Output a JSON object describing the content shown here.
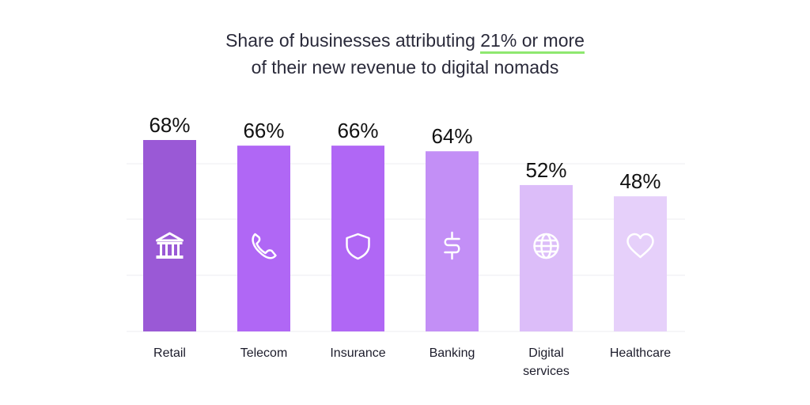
{
  "title": {
    "line1_prefix": "Share of businesses attributing ",
    "line1_highlight": "21% or more",
    "line2": "of their new revenue to digital nomads"
  },
  "colors": {
    "highlight_underline": "#8ee86f",
    "grid": "#ececf0"
  },
  "chart_data": {
    "type": "bar",
    "categories": [
      "Retail",
      "Telecom",
      "Insurance",
      "Banking",
      "Digital services",
      "Healthcare"
    ],
    "category_lines": [
      [
        "Retail"
      ],
      [
        "Telecom"
      ],
      [
        "Insurance"
      ],
      [
        "Banking"
      ],
      [
        "Digital",
        "services"
      ],
      [
        "Healthcare"
      ]
    ],
    "values": [
      68,
      66,
      66,
      64,
      52,
      48
    ],
    "value_labels": [
      "68%",
      "66%",
      "66%",
      "64%",
      "52%",
      "48%"
    ],
    "unit": "%",
    "bar_colors": [
      "#9a59d6",
      "#b067f5",
      "#b067f5",
      "#c38ff6",
      "#dcbdf9",
      "#e6d0fa"
    ],
    "icons": [
      "bank-icon",
      "phone-icon",
      "shield-icon",
      "dollar-icon",
      "globe-icon",
      "heart-icon"
    ],
    "ylim": [
      0,
      68
    ],
    "grid": true,
    "legend": "none",
    "xlabel": "",
    "ylabel": ""
  }
}
